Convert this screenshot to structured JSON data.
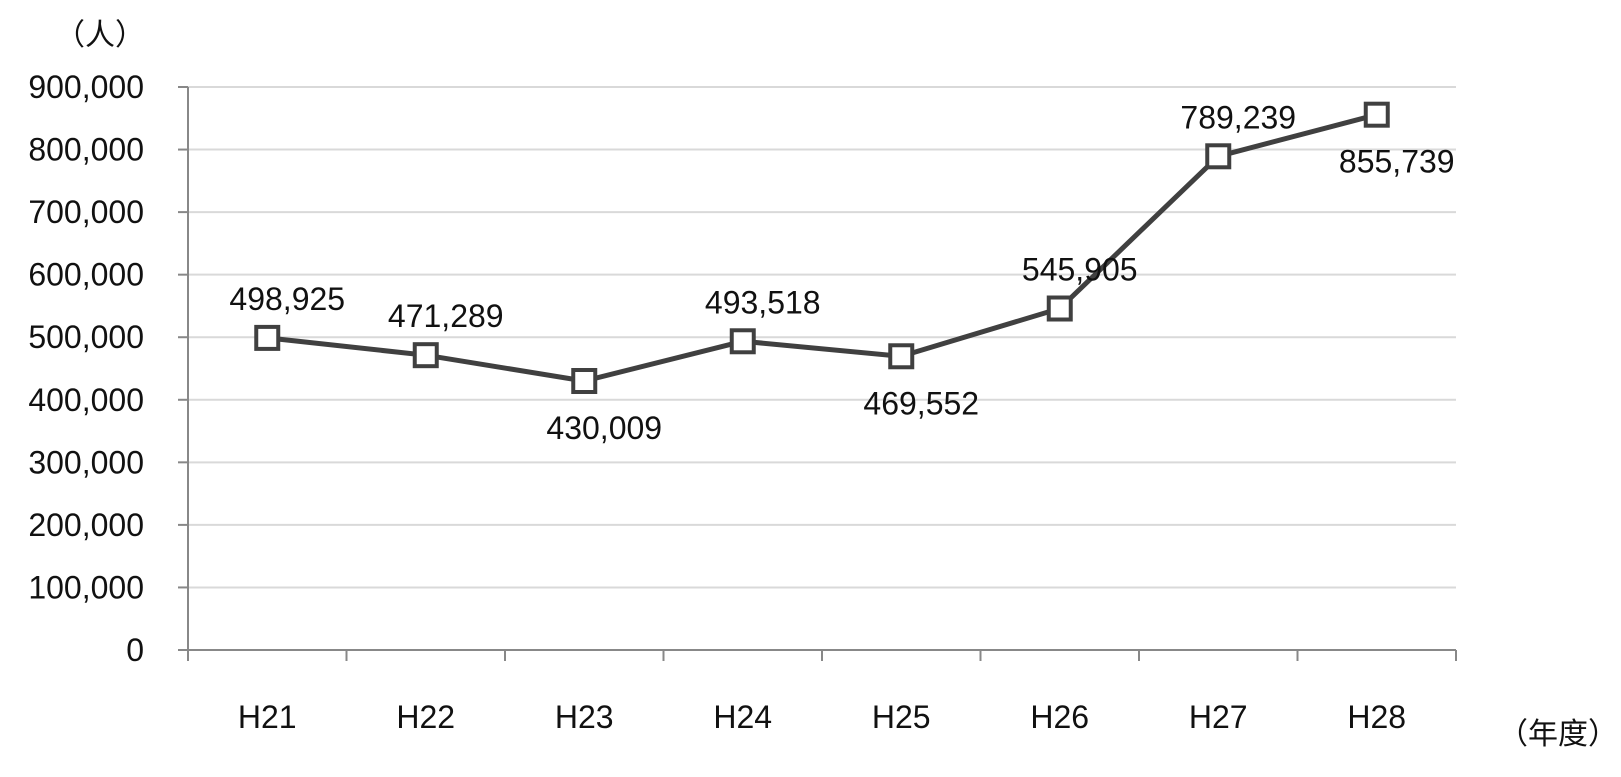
{
  "chart_data": {
    "type": "line",
    "title": "",
    "ylabel": "（人）",
    "xlabel": "（年度）",
    "categories": [
      "H21",
      "H22",
      "H23",
      "H24",
      "H25",
      "H26",
      "H27",
      "H28"
    ],
    "series": [
      {
        "values": [
          498925,
          471289,
          430009,
          493518,
          469552,
          545905,
          789239,
          855739
        ],
        "labels": [
          "498,925",
          "471,289",
          "430,009",
          "493,518",
          "469,552",
          "545,905",
          "789,239",
          "855,739"
        ],
        "label_positions": [
          "above",
          "above",
          "below",
          "above",
          "below",
          "above",
          "above",
          "below"
        ]
      }
    ],
    "ylim": [
      0,
      900000
    ],
    "yticks": [
      0,
      100000,
      200000,
      300000,
      400000,
      500000,
      600000,
      700000,
      800000,
      900000
    ],
    "ytick_labels": [
      "0",
      "100,000",
      "200,000",
      "300,000",
      "400,000",
      "500,000",
      "600,000",
      "700,000",
      "800,000",
      "900,000"
    ],
    "grid": true,
    "legend": "none",
    "colors": {
      "line": "#404040",
      "marker_stroke": "#404040",
      "marker_fill": "#ffffff",
      "grid": "#d9d9d9",
      "axis": "#888888"
    }
  }
}
